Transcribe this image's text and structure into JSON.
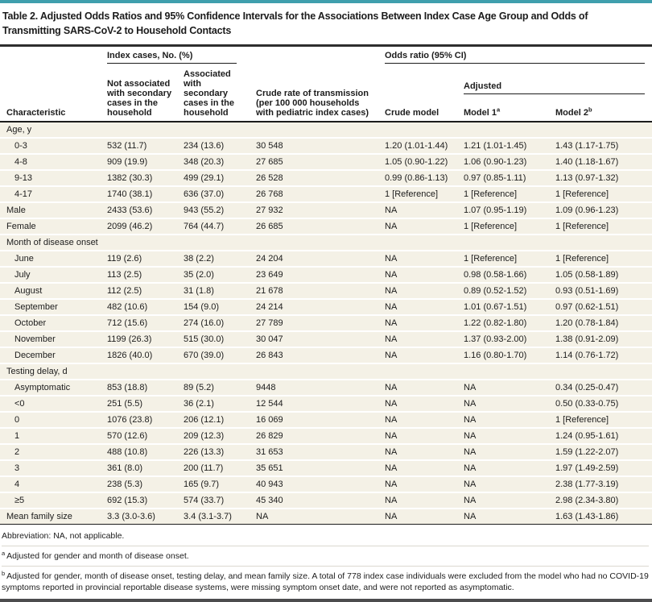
{
  "colors": {
    "top_accent": "#3f9fad",
    "bottom_rule": "#4c4c4e",
    "row_background": "#f4f1e6",
    "text": "#1c1c1c"
  },
  "title": "Table 2. Adjusted Odds Ratios and 95% Confidence Intervals for the Associations Between Index Case Age Group and Odds of Transmitting SARS-CoV-2 to Household Contacts",
  "header": {
    "characteristic": "Characteristic",
    "index_cases_group": "Index cases, No. (%)",
    "col_not_associated": "Not associated with secondary cases in the household",
    "col_associated": "Associated with secondary cases in the household",
    "col_crude_rate": "Crude rate of transmission (per 100 000 households with pediatric index cases)",
    "odds_ratio_group": "Odds ratio (95% CI)",
    "col_crude_model": "Crude model",
    "adjusted_group": "Adjusted",
    "col_model1": {
      "label": "Model 1",
      "sup": "a"
    },
    "col_model2": {
      "label": "Model 2",
      "sup": "b"
    }
  },
  "table_rows": [
    {
      "type": "section",
      "label": "Age, y"
    },
    {
      "type": "sub",
      "label": "0-3",
      "cells": [
        "532 (11.7)",
        "234 (13.6)",
        "30 548",
        "1.20 (1.01-1.44)",
        "1.21 (1.01-1.45)",
        "1.43 (1.17-1.75)"
      ]
    },
    {
      "type": "sub",
      "label": "4-8",
      "cells": [
        "909 (19.9)",
        "348 (20.3)",
        "27 685",
        "1.05 (0.90-1.22)",
        "1.06 (0.90-1.23)",
        "1.40 (1.18-1.67)"
      ]
    },
    {
      "type": "sub",
      "label": "9-13",
      "cells": [
        "1382 (30.3)",
        "499 (29.1)",
        "26 528",
        "0.99 (0.86-1.13)",
        "0.97 (0.85-1.11)",
        "1.13 (0.97-1.32)"
      ]
    },
    {
      "type": "sub",
      "label": "4-17",
      "cells": [
        "1740 (38.1)",
        "636 (37.0)",
        "26 768",
        "1 [Reference]",
        "1 [Reference]",
        "1 [Reference]"
      ]
    },
    {
      "type": "top",
      "label": "Male",
      "cells": [
        "2433 (53.6)",
        "943 (55.2)",
        "27 932",
        "NA",
        "1.07 (0.95-1.19)",
        "1.09 (0.96-1.23)"
      ]
    },
    {
      "type": "top",
      "label": "Female",
      "cells": [
        "2099 (46.2)",
        "764 (44.7)",
        "26 685",
        "NA",
        "1 [Reference]",
        "1 [Reference]"
      ]
    },
    {
      "type": "section",
      "label": "Month of disease onset"
    },
    {
      "type": "sub",
      "label": "June",
      "cells": [
        "119 (2.6)",
        "38 (2.2)",
        "24 204",
        "NA",
        "1 [Reference]",
        "1 [Reference]"
      ]
    },
    {
      "type": "sub",
      "label": "July",
      "cells": [
        "113 (2.5)",
        "35 (2.0)",
        "23 649",
        "NA",
        "0.98 (0.58-1.66)",
        "1.05 (0.58-1.89)"
      ]
    },
    {
      "type": "sub",
      "label": "August",
      "cells": [
        "112 (2.5)",
        "31 (1.8)",
        "21 678",
        "NA",
        "0.89 (0.52-1.52)",
        "0.93 (0.51-1.69)"
      ]
    },
    {
      "type": "sub",
      "label": "September",
      "cells": [
        "482 (10.6)",
        "154 (9.0)",
        "24 214",
        "NA",
        "1.01 (0.67-1.51)",
        "0.97 (0.62-1.51)"
      ]
    },
    {
      "type": "sub",
      "label": "October",
      "cells": [
        "712 (15.6)",
        "274 (16.0)",
        "27 789",
        "NA",
        "1.22 (0.82-1.80)",
        "1.20 (0.78-1.84)"
      ]
    },
    {
      "type": "sub",
      "label": "November",
      "cells": [
        "1199 (26.3)",
        "515 (30.0)",
        "30 047",
        "NA",
        "1.37 (0.93-2.00)",
        "1.38 (0.91-2.09)"
      ]
    },
    {
      "type": "sub",
      "label": "December",
      "cells": [
        "1826 (40.0)",
        "670 (39.0)",
        "26 843",
        "NA",
        "1.16 (0.80-1.70)",
        "1.14 (0.76-1.72)"
      ]
    },
    {
      "type": "section",
      "label": "Testing delay, d"
    },
    {
      "type": "sub",
      "label": "Asymptomatic",
      "cells": [
        "853 (18.8)",
        "89 (5.2)",
        "9448",
        "NA",
        "NA",
        "0.34 (0.25-0.47)"
      ]
    },
    {
      "type": "sub",
      "label": "<0",
      "cells": [
        "251 (5.5)",
        "36 (2.1)",
        "12 544",
        "NA",
        "NA",
        "0.50 (0.33-0.75)"
      ]
    },
    {
      "type": "sub",
      "label": "0",
      "cells": [
        "1076 (23.8)",
        "206 (12.1)",
        "16 069",
        "NA",
        "NA",
        "1 [Reference]"
      ]
    },
    {
      "type": "sub",
      "label": "1",
      "cells": [
        "570 (12.6)",
        "209 (12.3)",
        "26 829",
        "NA",
        "NA",
        "1.24 (0.95-1.61)"
      ]
    },
    {
      "type": "sub",
      "label": "2",
      "cells": [
        "488 (10.8)",
        "226 (13.3)",
        "31 653",
        "NA",
        "NA",
        "1.59 (1.22-2.07)"
      ]
    },
    {
      "type": "sub",
      "label": "3",
      "cells": [
        "361 (8.0)",
        "200 (11.7)",
        "35 651",
        "NA",
        "NA",
        "1.97 (1.49-2.59)"
      ]
    },
    {
      "type": "sub",
      "label": "4",
      "cells": [
        "238 (5.3)",
        "165 (9.7)",
        "40 943",
        "NA",
        "NA",
        "2.38 (1.77-3.19)"
      ]
    },
    {
      "type": "sub",
      "label": "≥5",
      "cells": [
        "692 (15.3)",
        "574 (33.7)",
        "45 340",
        "NA",
        "NA",
        "2.98 (2.34-3.80)"
      ]
    },
    {
      "type": "top",
      "label": "Mean family size",
      "cells": [
        "3.3 (3.0-3.6)",
        "3.4 (3.1-3.7)",
        "NA",
        "NA",
        "NA",
        "1.63 (1.43-1.86)"
      ]
    }
  ],
  "footnotes": {
    "abbreviation": "Abbreviation: NA, not applicable.",
    "a": {
      "marker": "a",
      "text": "Adjusted for gender and month of disease onset."
    },
    "b": {
      "marker": "b",
      "text": "Adjusted for gender, month of disease onset, testing delay, and mean family size. A total of 778 index case individuals were excluded from the model who had no COVID-19 symptoms reported in provincial reportable disease systems, were missing symptom onset date, and were not reported as asymptomatic."
    }
  }
}
